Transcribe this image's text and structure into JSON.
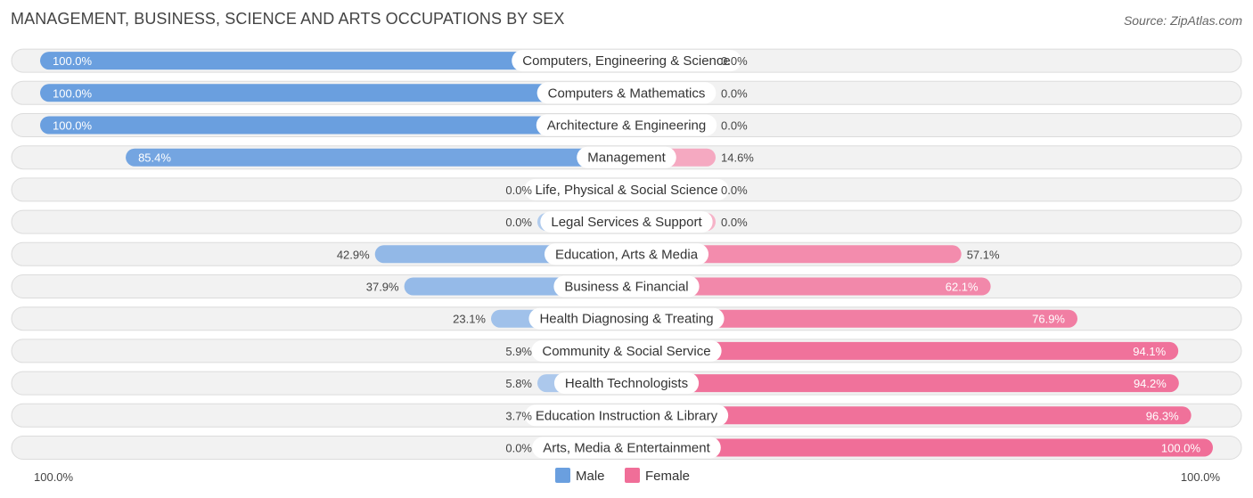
{
  "title": "MANAGEMENT, BUSINESS, SCIENCE AND ARTS OCCUPATIONS BY SEX",
  "source": "Source: ZipAtlas.com",
  "chart_data": {
    "type": "bar",
    "orientation": "horizontal-diverging",
    "categories": [
      "Computers, Engineering & Science",
      "Computers & Mathematics",
      "Architecture & Engineering",
      "Management",
      "Life, Physical & Social Science",
      "Legal Services & Support",
      "Education, Arts & Media",
      "Business & Financial",
      "Health Diagnosing & Treating",
      "Community & Social Service",
      "Health Technologists",
      "Education Instruction & Library",
      "Arts, Media & Entertainment"
    ],
    "series": [
      {
        "name": "Male",
        "color": "#6a9fdf",
        "values": [
          100.0,
          100.0,
          100.0,
          85.4,
          0.0,
          0.0,
          42.9,
          37.9,
          23.1,
          5.9,
          5.8,
          3.7,
          0.0
        ],
        "labels": [
          "100.0%",
          "100.0%",
          "100.0%",
          "85.4%",
          "0.0%",
          "0.0%",
          "42.9%",
          "37.9%",
          "23.1%",
          "5.9%",
          "5.8%",
          "3.7%",
          "0.0%"
        ]
      },
      {
        "name": "Female",
        "color": "#f06e98",
        "values": [
          0.0,
          0.0,
          0.0,
          14.6,
          0.0,
          0.0,
          57.1,
          62.1,
          76.9,
          94.1,
          94.2,
          96.3,
          100.0
        ],
        "labels": [
          "0.0%",
          "0.0%",
          "0.0%",
          "14.6%",
          "0.0%",
          "0.0%",
          "57.1%",
          "62.1%",
          "76.9%",
          "94.1%",
          "94.2%",
          "96.3%",
          "100.0%"
        ]
      }
    ],
    "axis": {
      "left_label": "100.0%",
      "right_label": "100.0%",
      "xlim": [
        -100,
        100
      ]
    },
    "legend": {
      "position": "bottom-center",
      "entries": [
        "Male",
        "Female"
      ]
    }
  }
}
